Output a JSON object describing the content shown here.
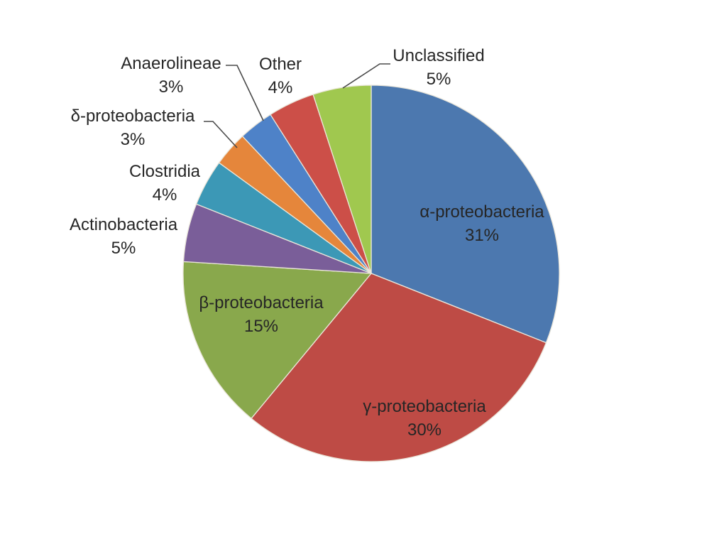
{
  "chart_data": {
    "type": "pie",
    "title": "",
    "unit": "percent",
    "direction": "clockwise",
    "start_angle_deg": 0,
    "legend_position": "none",
    "data_labels": "category name and percentage",
    "slices": [
      {
        "id": "alpha-proteobacteria",
        "label": "α-proteobacteria",
        "pct": 31,
        "color": "#4C78AF"
      },
      {
        "id": "gamma-proteobacteria",
        "label": "γ-proteobacteria",
        "pct": 30,
        "color": "#BE4B45"
      },
      {
        "id": "beta-proteobacteria",
        "label": "β-proteobacteria",
        "pct": 15,
        "color": "#89A84C"
      },
      {
        "id": "actinobacteria",
        "label": "Actinobacteria",
        "pct": 5,
        "color": "#7A5E99"
      },
      {
        "id": "clostridia",
        "label": "Clostridia",
        "pct": 4,
        "color": "#3C98B6"
      },
      {
        "id": "delta-proteobacteria",
        "label": "δ-proteobacteria",
        "pct": 3,
        "color": "#E5863B"
      },
      {
        "id": "anaerolineae",
        "label": "Anaerolineae",
        "pct": 3,
        "color": "#4E82C8"
      },
      {
        "id": "other",
        "label": "Other",
        "pct": 4,
        "color": "#CC4F48"
      },
      {
        "id": "unclassified",
        "label": "Unclassified",
        "pct": 5,
        "color": "#A0C84F"
      }
    ],
    "callout_lines_for": [
      "δ-proteobacteria",
      "Anaerolineae",
      "Unclassified"
    ]
  }
}
